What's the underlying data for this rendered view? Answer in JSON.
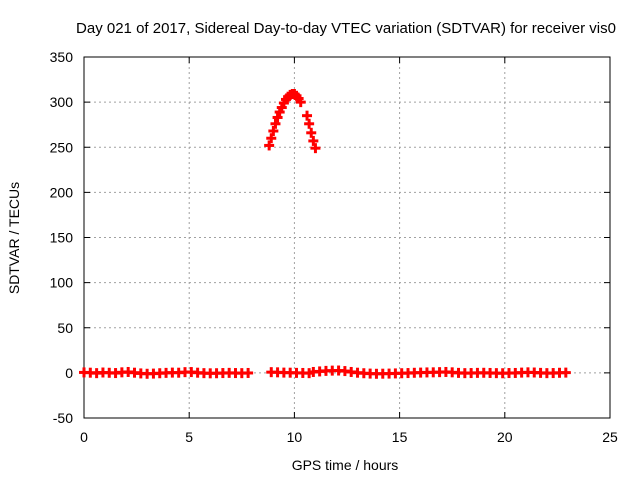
{
  "chart_data": {
    "type": "scatter",
    "title": "Day 021 of 2017, Sidereal Day-to-day VTEC variation (SDTVAR) for receiver vis0",
    "xlabel": "GPS time / hours",
    "ylabel": "SDTVAR / TECUs",
    "xlim": [
      0,
      25
    ],
    "ylim": [
      -50,
      350
    ],
    "xticks": [
      0,
      5,
      10,
      15,
      20,
      25
    ],
    "yticks": [
      -50,
      0,
      50,
      100,
      150,
      200,
      250,
      300,
      350
    ],
    "grid": true,
    "legend": "none",
    "marker_color": "#ff0000",
    "series": [
      {
        "points": [
          [
            0.0,
            0.5
          ],
          [
            0.3,
            0.2
          ],
          [
            0.6,
            -0.3
          ],
          [
            0.9,
            0.4
          ],
          [
            1.2,
            0.1
          ],
          [
            1.5,
            -0.2
          ],
          [
            1.8,
            0.6
          ],
          [
            2.1,
            1.0
          ],
          [
            2.4,
            0.2
          ],
          [
            2.7,
            -0.6
          ],
          [
            3.0,
            -1.0
          ],
          [
            3.3,
            -0.8
          ],
          [
            3.6,
            -0.4
          ],
          [
            3.9,
            0.0
          ],
          [
            4.2,
            0.3
          ],
          [
            4.5,
            0.2
          ],
          [
            4.8,
            0.8
          ],
          [
            5.1,
            0.9
          ],
          [
            5.4,
            0.2
          ],
          [
            5.7,
            -0.3
          ],
          [
            6.0,
            -0.5
          ],
          [
            6.3,
            -0.4
          ],
          [
            6.6,
            -0.2
          ],
          [
            6.9,
            0.0
          ],
          [
            7.2,
            -0.2
          ],
          [
            7.5,
            -0.3
          ],
          [
            7.8,
            -0.1
          ],
          [
            8.8,
            252
          ],
          [
            8.9,
            260
          ],
          [
            9.0,
            268
          ],
          [
            9.1,
            276
          ],
          [
            9.2,
            283
          ],
          [
            9.3,
            289
          ],
          [
            9.4,
            294
          ],
          [
            9.5,
            299
          ],
          [
            9.6,
            303
          ],
          [
            9.7,
            306
          ],
          [
            9.8,
            308
          ],
          [
            9.9,
            309
          ],
          [
            10.0,
            309
          ],
          [
            10.1,
            307
          ],
          [
            10.2,
            304
          ],
          [
            10.3,
            300
          ],
          [
            10.6,
            285
          ],
          [
            10.7,
            276
          ],
          [
            10.8,
            266
          ],
          [
            10.9,
            257
          ],
          [
            11.0,
            249
          ],
          [
            8.9,
            0.8
          ],
          [
            9.2,
            0.6
          ],
          [
            9.5,
            0.3
          ],
          [
            9.8,
            0.2
          ],
          [
            10.1,
            0.0
          ],
          [
            10.4,
            -0.1
          ],
          [
            10.7,
            -0.3
          ],
          [
            10.9,
            1.0
          ],
          [
            11.2,
            1.6
          ],
          [
            11.5,
            2.2
          ],
          [
            11.8,
            2.5
          ],
          [
            12.1,
            2.6
          ],
          [
            12.4,
            2.0
          ],
          [
            12.7,
            1.0
          ],
          [
            13.0,
            0.2
          ],
          [
            13.3,
            -0.4
          ],
          [
            13.6,
            -0.8
          ],
          [
            13.9,
            -1.0
          ],
          [
            14.2,
            -0.9
          ],
          [
            14.5,
            -0.8
          ],
          [
            14.8,
            -0.6
          ],
          [
            15.1,
            -0.4
          ],
          [
            15.4,
            -0.2
          ],
          [
            15.7,
            0.1
          ],
          [
            16.0,
            0.3
          ],
          [
            16.3,
            0.5
          ],
          [
            16.6,
            0.6
          ],
          [
            16.9,
            0.8
          ],
          [
            17.2,
            1.0
          ],
          [
            17.5,
            0.6
          ],
          [
            17.8,
            0.0
          ],
          [
            18.1,
            -0.3
          ],
          [
            18.4,
            -0.2
          ],
          [
            18.7,
            0.0
          ],
          [
            19.0,
            0.1
          ],
          [
            19.3,
            -0.1
          ],
          [
            19.6,
            -0.3
          ],
          [
            19.9,
            -0.4
          ],
          [
            20.2,
            -0.2
          ],
          [
            20.5,
            -0.1
          ],
          [
            20.8,
            0.3
          ],
          [
            21.1,
            0.6
          ],
          [
            21.4,
            0.4
          ],
          [
            21.7,
            0.0
          ],
          [
            22.0,
            -0.3
          ],
          [
            22.3,
            -0.2
          ],
          [
            22.6,
            0.1
          ],
          [
            22.9,
            0.3
          ]
        ]
      }
    ]
  }
}
